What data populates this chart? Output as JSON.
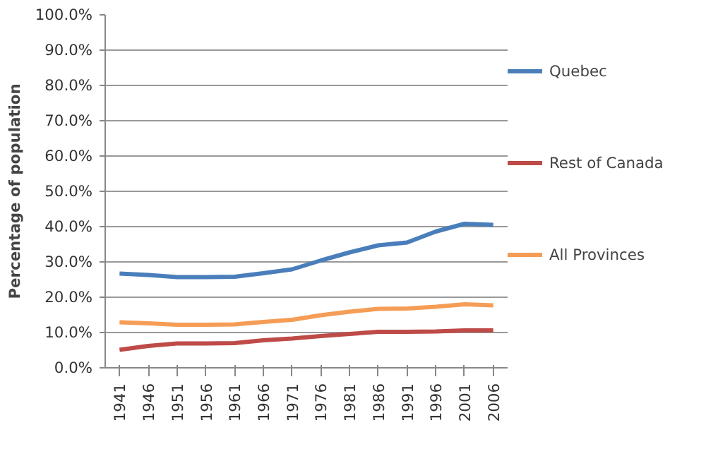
{
  "chart_data": {
    "type": "line",
    "ylabel": "Percentage of population",
    "categories": [
      "1941",
      "1946",
      "1951",
      "1956",
      "1961",
      "1966",
      "1971",
      "1976",
      "1981",
      "1986",
      "1991",
      "1996",
      "2001",
      "2006"
    ],
    "series": [
      {
        "name": "Quebec",
        "color": "#4a7ebb",
        "values": [
          26.7,
          26.3,
          25.7,
          25.7,
          25.8,
          26.8,
          27.9,
          30.4,
          32.7,
          34.7,
          35.5,
          38.6,
          40.8,
          40.5
        ]
      },
      {
        "name": "Rest of Canada",
        "color": "#be4b48",
        "values": [
          5.1,
          6.2,
          6.9,
          6.9,
          7.0,
          7.8,
          8.3,
          9.0,
          9.6,
          10.2,
          10.2,
          10.3,
          10.6,
          10.6
        ]
      },
      {
        "name": "All Provinces",
        "color": "#f59d56",
        "values": [
          12.9,
          12.6,
          12.2,
          12.2,
          12.3,
          13.0,
          13.6,
          14.9,
          15.9,
          16.7,
          16.8,
          17.3,
          18.0,
          17.7
        ]
      }
    ],
    "ylim": [
      0,
      100
    ],
    "yticks": [
      {
        "value": 0,
        "label": "0.0%"
      },
      {
        "value": 10,
        "label": "10.0%"
      },
      {
        "value": 20,
        "label": "20.0%"
      },
      {
        "value": 30,
        "label": "30.0%"
      },
      {
        "value": 40,
        "label": "40.0%"
      },
      {
        "value": 50,
        "label": "50.0%"
      },
      {
        "value": 60,
        "label": "60.0%"
      },
      {
        "value": 70,
        "label": "70.0%"
      },
      {
        "value": 80,
        "label": "80.0%"
      },
      {
        "value": 90,
        "label": "90.0%"
      },
      {
        "value": 100,
        "label": "100.0%"
      }
    ],
    "grid": "y",
    "legend": "right",
    "line_style": "solid"
  }
}
